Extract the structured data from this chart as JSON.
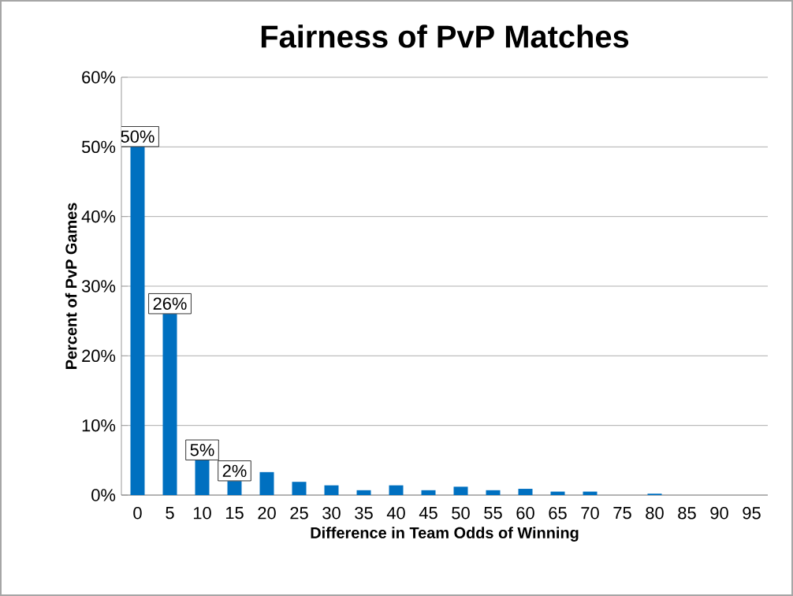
{
  "chart_data": {
    "type": "bar",
    "title": "Fairness of PvP Matches",
    "xlabel": "Difference in Team Odds of Winning",
    "ylabel": "Percent of PvP Games",
    "categories": [
      "0",
      "5",
      "10",
      "15",
      "20",
      "25",
      "30",
      "35",
      "40",
      "45",
      "50",
      "55",
      "60",
      "65",
      "70",
      "75",
      "80",
      "85",
      "90",
      "95"
    ],
    "values": [
      50,
      26,
      5,
      2,
      3.3,
      1.9,
      1.4,
      0.7,
      1.4,
      0.7,
      1.2,
      0.7,
      0.9,
      0.5,
      0.5,
      0,
      0.2,
      0,
      0,
      0
    ],
    "value_labels": [
      "50%",
      "26%",
      "5%",
      "2%",
      null,
      null,
      null,
      null,
      null,
      null,
      null,
      null,
      null,
      null,
      null,
      null,
      null,
      null,
      null,
      null
    ],
    "color": "#0070c0",
    "ylim": [
      0,
      60
    ],
    "yticks": [
      {
        "value": 0,
        "label": "0%"
      },
      {
        "value": 10,
        "label": "10%"
      },
      {
        "value": 20,
        "label": "20%"
      },
      {
        "value": 30,
        "label": "30%"
      },
      {
        "value": 40,
        "label": "40%"
      },
      {
        "value": 50,
        "label": "50%"
      },
      {
        "value": 60,
        "label": "60%"
      }
    ],
    "grid": "y"
  }
}
